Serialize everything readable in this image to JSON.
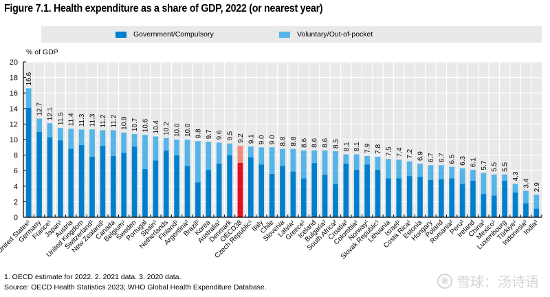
{
  "chart_data": {
    "type": "bar",
    "stacked": true,
    "title": "Figure 7.1. Health expenditure as a share of GDP, 2022 (or nearest year)",
    "ylabel": "% of GDP",
    "xlabel": "",
    "ylim": [
      0,
      20
    ],
    "yticks": [
      0,
      2,
      4,
      6,
      8,
      10,
      12,
      14,
      16,
      18,
      20
    ],
    "grid": true,
    "legend_position": "top",
    "legend": [
      {
        "name": "Government/Compulsory",
        "color": "#0080cc"
      },
      {
        "name": "Voluntary/Out-of-pocket",
        "color": "#55b4e8"
      }
    ],
    "highlight": {
      "category": "OECD38",
      "colors": {
        "government": "#e0101e",
        "voluntary": "#f28c78"
      }
    },
    "categories": [
      "United States¹",
      "Germany",
      "France¹",
      "Japan¹",
      "Austria",
      "United Kingdom",
      "Switzerland¹",
      "New Zealand¹",
      "Canada",
      "Belgium¹",
      "Sweden",
      "Portugal",
      "Spain¹",
      "Netherlands",
      "Finland¹",
      "Argentina³",
      "Brazil³",
      "Korea",
      "Australia¹",
      "Denmark",
      "OECD38",
      "Czech Republic¹",
      "Italy",
      "Chile",
      "Slovenia",
      "Latvia¹",
      "Greece¹",
      "Iceland",
      "Bulgaria²",
      "South Africa²",
      "Croatia²",
      "Colombia¹",
      "Norway¹",
      "Slovak Republic¹",
      "Lithuania",
      "Israel¹",
      "Costa Rica¹",
      "Estonia",
      "Hungary",
      "Poland",
      "Romania²",
      "Peru³",
      "Ireland",
      "China²",
      "Mexico¹",
      "Luxembourg",
      "Türkiye¹",
      "Indonesia³",
      "India³"
    ],
    "totals": [
      16.6,
      12.7,
      12.1,
      11.5,
      11.4,
      11.3,
      11.3,
      11.2,
      11.2,
      10.9,
      10.7,
      10.6,
      10.4,
      10.2,
      10.0,
      10.0,
      9.8,
      9.7,
      9.6,
      9.5,
      9.2,
      9.1,
      9.0,
      9.0,
      8.8,
      8.8,
      8.6,
      8.6,
      8.6,
      8.5,
      8.1,
      8.1,
      7.9,
      7.8,
      7.5,
      7.4,
      7.2,
      6.9,
      6.7,
      6.7,
      6.5,
      6.3,
      6.1,
      5.7,
      5.5,
      5.5,
      4.3,
      3.4,
      2.9
    ],
    "series": [
      {
        "name": "Government/Compulsory",
        "values": [
          14.1,
          11.0,
          10.3,
          9.9,
          8.8,
          9.3,
          7.8,
          9.2,
          7.9,
          8.3,
          9.1,
          6.2,
          7.3,
          8.6,
          8.0,
          6.6,
          4.5,
          6.1,
          6.9,
          8.0,
          7.0,
          7.7,
          6.8,
          5.6,
          6.6,
          5.9,
          5.0,
          7.0,
          5.5,
          4.3,
          6.9,
          6.1,
          6.8,
          6.1,
          5.0,
          5.0,
          5.3,
          5.2,
          4.8,
          4.9,
          5.0,
          4.3,
          4.7,
          3.0,
          2.8,
          4.7,
          3.2,
          1.8,
          1.1
        ]
      },
      {
        "name": "Voluntary/Out-of-pocket",
        "values": [
          2.5,
          1.7,
          1.8,
          1.6,
          2.6,
          2.0,
          3.5,
          2.0,
          3.3,
          2.6,
          1.6,
          4.4,
          3.1,
          1.6,
          2.0,
          3.4,
          5.3,
          3.6,
          2.7,
          1.5,
          2.2,
          1.4,
          2.2,
          3.4,
          2.2,
          2.9,
          3.6,
          1.6,
          3.1,
          4.2,
          1.2,
          2.0,
          1.1,
          1.7,
          2.5,
          2.4,
          1.9,
          1.7,
          1.9,
          1.8,
          1.5,
          2.0,
          1.4,
          2.7,
          2.7,
          0.8,
          1.1,
          1.6,
          1.8
        ]
      }
    ]
  },
  "notes": {
    "footnote": "1. OECD estimate for 2022. 2. 2021 data. 3. 2020 data.",
    "source": "Source: OECD Health Statistics 2023; WHO Global Health Expenditure Database."
  },
  "watermark": {
    "logo_icon": "snowball-logo-icon",
    "text": "雪球：汤诗语",
    "logo_glyph": "❀"
  }
}
